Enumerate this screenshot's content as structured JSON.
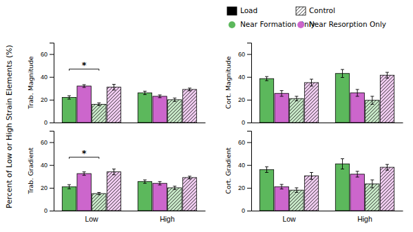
{
  "chart_data": [
    {
      "type": "bar",
      "ylabel": "Trab. Magnitude",
      "categories": [
        "Low",
        "High"
      ],
      "ylim": [
        0,
        70
      ],
      "yticks": [
        0,
        20,
        40,
        60
      ],
      "grid": false,
      "tick_labels": "y",
      "series": [
        {
          "color": "#5cb85c",
          "line_style": "solid",
          "values": [
            22,
            26
          ],
          "errors": [
            1.5,
            1.5
          ]
        },
        {
          "color": "#cc66cc",
          "line_style": "solid",
          "values": [
            32,
            23
          ],
          "errors": [
            1.2,
            1.2
          ]
        },
        {
          "color": "#5cb85c",
          "line_style": "hatched",
          "values": [
            16,
            20
          ],
          "errors": [
            1.2,
            1.5
          ]
        },
        {
          "color": "#cc66cc",
          "line_style": "hatched",
          "values": [
            31,
            29
          ],
          "errors": [
            2.5,
            1.2
          ]
        }
      ],
      "annotations": [
        {
          "text": "*",
          "category": "Low"
        }
      ]
    },
    {
      "type": "bar",
      "ylabel": "Cort. Magnitude",
      "categories": [
        "Low",
        "High"
      ],
      "ylim": [
        0,
        70
      ],
      "yticks": [
        0,
        20,
        40,
        60
      ],
      "grid": false,
      "tick_labels": "y",
      "series": [
        {
          "color": "#5cb85c",
          "line_style": "solid",
          "values": [
            38.5,
            43
          ],
          "errors": [
            1.8,
            3.5
          ]
        },
        {
          "color": "#cc66cc",
          "line_style": "solid",
          "values": [
            25.5,
            26
          ],
          "errors": [
            2.5,
            3.0
          ]
        },
        {
          "color": "#5cb85c",
          "line_style": "hatched",
          "values": [
            21,
            19.5
          ],
          "errors": [
            2.0,
            3.5
          ]
        },
        {
          "color": "#cc66cc",
          "line_style": "hatched",
          "values": [
            35,
            41.5
          ],
          "errors": [
            3.0,
            2.5
          ]
        }
      ]
    },
    {
      "type": "bar",
      "ylabel": "Trab. Gradient",
      "categories": [
        "Low",
        "High"
      ],
      "ylim": [
        0,
        70
      ],
      "yticks": [
        0,
        20,
        40,
        60
      ],
      "grid": false,
      "series": [
        {
          "color": "#5cb85c",
          "line_style": "solid",
          "values": [
            21,
            25.5
          ],
          "errors": [
            1.8,
            1.5
          ]
        },
        {
          "color": "#cc66cc",
          "line_style": "solid",
          "values": [
            32.5,
            24
          ],
          "errors": [
            1.5,
            1.5
          ]
        },
        {
          "color": "#5cb85c",
          "line_style": "hatched",
          "values": [
            15,
            20
          ],
          "errors": [
            1.0,
            1.5
          ]
        },
        {
          "color": "#cc66cc",
          "line_style": "hatched",
          "values": [
            34,
            29
          ],
          "errors": [
            2.5,
            1.2
          ]
        }
      ],
      "annotations": [
        {
          "text": "*",
          "category": "Low"
        }
      ]
    },
    {
      "type": "bar",
      "ylabel": "Cort. Gradient",
      "categories": [
        "Low",
        "High"
      ],
      "ylim": [
        0,
        70
      ],
      "yticks": [
        0,
        20,
        40,
        60
      ],
      "grid": false,
      "series": [
        {
          "color": "#5cb85c",
          "line_style": "solid",
          "values": [
            36,
            41
          ],
          "errors": [
            2.5,
            4.5
          ]
        },
        {
          "color": "#cc66cc",
          "line_style": "solid",
          "values": [
            21,
            32
          ],
          "errors": [
            2.0,
            2.5
          ]
        },
        {
          "color": "#5cb85c",
          "line_style": "hatched",
          "values": [
            18,
            23.5
          ],
          "errors": [
            2.0,
            3.5
          ]
        },
        {
          "color": "#cc66cc",
          "line_style": "hatched",
          "values": [
            30.5,
            38
          ],
          "errors": [
            3.0,
            2.5
          ]
        }
      ]
    }
  ],
  "ylabel": "Percent of Low or High Strain Elements (%)",
  "legend": "upper right",
  "legend_entries": [
    {
      "name": "Load",
      "color": "#000000",
      "line_style": "solid"
    },
    {
      "name": "Near Formation Only",
      "color": "#5cb85c",
      "marker": "circle"
    },
    {
      "name": "Control",
      "color": "#ffffff",
      "line_style": "hatched"
    },
    {
      "name": "Near Resorption Only",
      "color": "#cc66cc",
      "marker": "circle"
    }
  ]
}
